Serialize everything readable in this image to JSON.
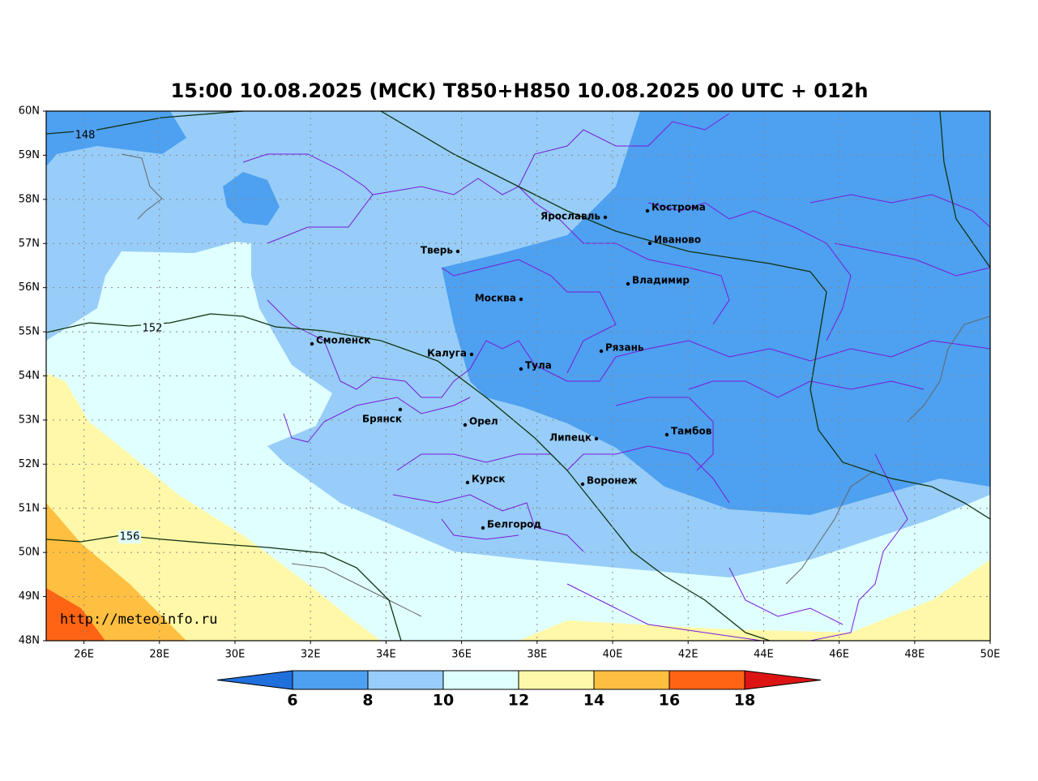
{
  "title": "15:00 10.08.2025 (МСК) T850+H850 10.08.2025 00 UTC + 012h",
  "lat_labels": [
    "60N",
    "59N",
    "58N",
    "57N",
    "56N",
    "55N",
    "54N",
    "53N",
    "52N",
    "51N",
    "50N",
    "49N",
    "48N"
  ],
  "lon_labels": [
    "26E",
    "28E",
    "30E",
    "32E",
    "34E",
    "36E",
    "38E",
    "40E",
    "42E",
    "44E",
    "46E",
    "48E",
    "50E"
  ],
  "cities": [
    "Кострома",
    "Ярославль",
    "Иваново",
    "Тверь",
    "Владимир",
    "Москва",
    "Смоленск",
    "Калуга",
    "Рязань",
    "Тула",
    "Брянск",
    "Орел",
    "Липецк",
    "Тамбов",
    "Курск",
    "Воронеж",
    "Белгород"
  ],
  "contour_labels": [
    148,
    152,
    156
  ],
  "colorbar": {
    "ticks": [
      6,
      8,
      10,
      12,
      14,
      16,
      18
    ],
    "colors": [
      "#1f6fdc",
      "#4ea0f0",
      "#97cdf8",
      "#e0ffff",
      "#fff8a8",
      "#ffbf40",
      "#ff6414",
      "#dc1414"
    ]
  },
  "watermark": "http://meteoinfo.ru"
}
